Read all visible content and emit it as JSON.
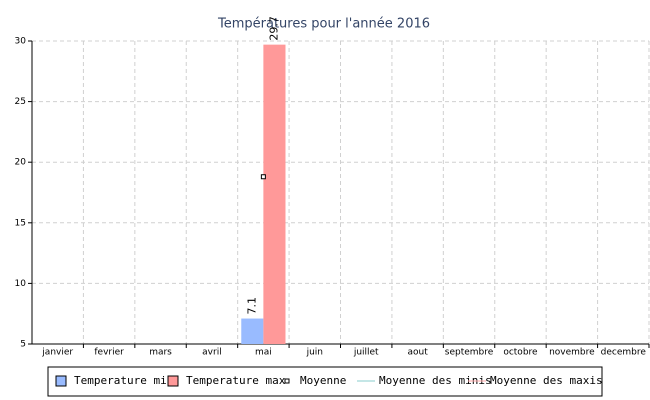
{
  "chart_data": {
    "type": "bar",
    "title": "Températures pour l'année 2016",
    "categories": [
      "janvier",
      "fevrier",
      "mars",
      "avril",
      "mai",
      "juin",
      "juillet",
      "aout",
      "septembre",
      "octobre",
      "novembre",
      "decembre"
    ],
    "series": [
      {
        "name": "Temperature min",
        "kind": "bar",
        "color": "#99bbff",
        "values": [
          null,
          null,
          null,
          null,
          7.1,
          null,
          null,
          null,
          null,
          null,
          null,
          null
        ]
      },
      {
        "name": "Temperature max",
        "kind": "bar",
        "color": "#ff9999",
        "values": [
          null,
          null,
          null,
          null,
          29.7,
          null,
          null,
          null,
          null,
          null,
          null,
          null
        ]
      },
      {
        "name": "Moyenne",
        "kind": "point",
        "color": "#000000",
        "values": [
          null,
          null,
          null,
          null,
          18.8,
          null,
          null,
          null,
          null,
          null,
          null,
          null
        ]
      },
      {
        "name": "Moyenne des minis",
        "kind": "line",
        "color": "#88cccc",
        "values": [
          null,
          null,
          null,
          null,
          null,
          null,
          null,
          null,
          null,
          null,
          null,
          null
        ]
      },
      {
        "name": "Moyenne des maxis",
        "kind": "line",
        "color": "#ffaaaa",
        "values": [
          null,
          null,
          null,
          null,
          null,
          null,
          null,
          null,
          null,
          null,
          null,
          null
        ]
      }
    ],
    "ylim": [
      5,
      30
    ],
    "yticks": [
      5,
      10,
      15,
      20,
      25,
      30
    ],
    "grid": true
  }
}
